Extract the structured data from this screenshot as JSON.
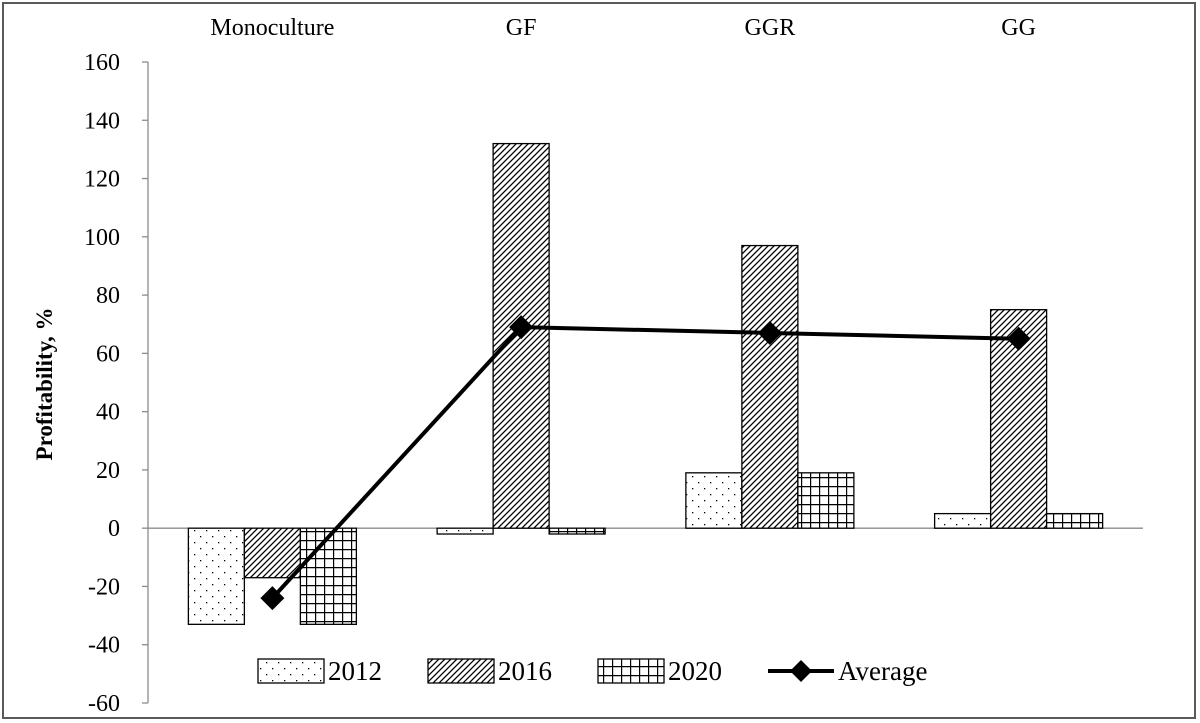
{
  "chart_data": {
    "type": "bar",
    "title": "",
    "xlabel": "",
    "ylabel": "Profitability, %",
    "ylim": [
      -60,
      160
    ],
    "yticks": [
      -60,
      -40,
      -20,
      0,
      20,
      40,
      60,
      80,
      100,
      120,
      140,
      160
    ],
    "categories": [
      "Monoculture",
      "GF",
      "GGR",
      "GG"
    ],
    "category_label_position": "top",
    "series": [
      {
        "name": "2012",
        "kind": "bar",
        "pattern": "dots",
        "values": [
          -33,
          -2,
          19,
          5
        ]
      },
      {
        "name": "2016",
        "kind": "bar",
        "pattern": "diagonal-hatch",
        "values": [
          -17,
          132,
          97,
          75
        ]
      },
      {
        "name": "2020",
        "kind": "bar",
        "pattern": "grid",
        "values": [
          -33,
          -2,
          19,
          5
        ]
      },
      {
        "name": "Average",
        "kind": "line",
        "marker": "diamond",
        "values": [
          -24,
          69,
          67,
          65
        ]
      }
    ],
    "legend": "bottom-inside",
    "grid": false,
    "colors": {
      "ink": "#000000",
      "frame": "#5a5a5a",
      "axis": "#8c8c8c",
      "background": "#ffffff"
    }
  }
}
